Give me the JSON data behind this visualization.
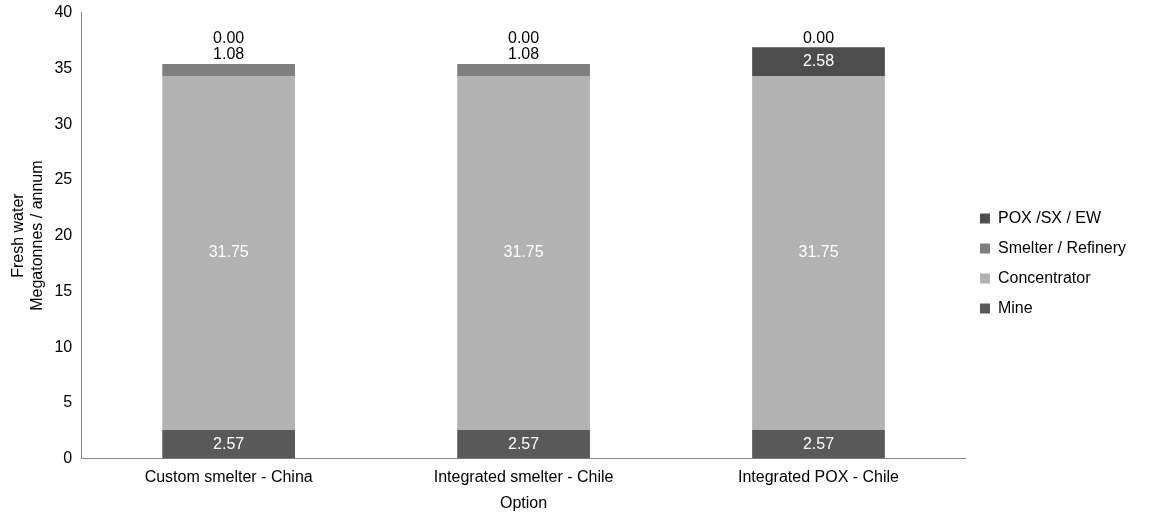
{
  "chart_data": {
    "type": "bar",
    "stacked": true,
    "xlabel": "Option",
    "ylabel": "Fresh water\nMegatonnes / annum",
    "categories": [
      "Custom smelter - China",
      "Integrated smelter - Chile",
      "Integrated POX - Chile"
    ],
    "series": [
      {
        "name": "Mine",
        "color": "#595959",
        "values": [
          2.57,
          2.57,
          2.57
        ],
        "value_labels": [
          "2.57",
          "2.57",
          "2.57"
        ]
      },
      {
        "name": "Concentrator",
        "color": "#b2b2b2",
        "values": [
          31.75,
          31.75,
          31.75
        ],
        "value_labels": [
          "31.75",
          "31.75",
          "31.75"
        ]
      },
      {
        "name": "Smelter / Refinery",
        "color": "#7f7f7f",
        "values": [
          1.08,
          1.08,
          0
        ],
        "value_labels": [
          "1.08",
          "1.08",
          "0.00"
        ]
      },
      {
        "name": "POX /SX / EW",
        "color": "#4d4d4d",
        "values": [
          0,
          0,
          2.58
        ],
        "value_labels": [
          "0.00",
          "0.00",
          "2.58"
        ]
      }
    ],
    "ylim": [
      0,
      40
    ],
    "yticks": [
      0,
      5,
      10,
      15,
      20,
      25,
      30,
      35,
      40
    ],
    "grid": false,
    "legend": "right"
  }
}
